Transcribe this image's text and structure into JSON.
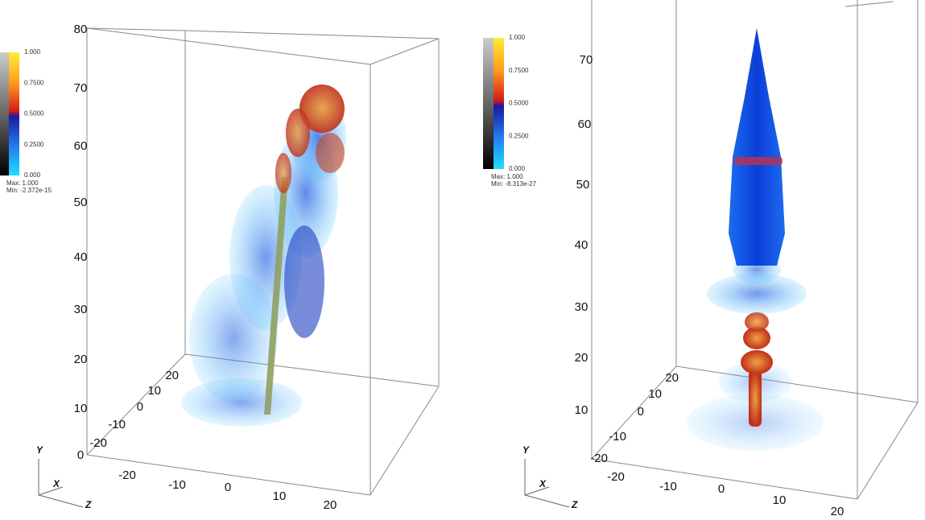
{
  "panels": [
    {
      "colorbar": {
        "labels": [
          "1.000",
          "0.7500",
          "0.5000",
          "0.2500",
          "0.000"
        ],
        "max": "Max: 1.000",
        "min": "Min: -2.372e-15"
      },
      "y_ticks": [
        "80",
        "70",
        "60",
        "50",
        "40",
        "30",
        "20",
        "10",
        "0"
      ],
      "z_ticks": [
        "20",
        "10",
        "0",
        "-10",
        "-20"
      ],
      "x_ticks": [
        "-20",
        "-10",
        "0",
        "10",
        "20"
      ],
      "axes": {
        "y": "Y",
        "x": "X",
        "z": "Z"
      }
    },
    {
      "colorbar": {
        "labels": [
          "1.000",
          "0.7500",
          "0.5000",
          "0.2500",
          "0.000"
        ],
        "max": "Max: 1.000",
        "min": "Min: -8.313e-27"
      },
      "y_ticks": [
        "70",
        "60",
        "50",
        "40",
        "30",
        "20",
        "10"
      ],
      "z_ticks": [
        "20",
        "10",
        "0",
        "-10",
        "-20"
      ],
      "x_ticks": [
        "-20",
        "-10",
        "0",
        "10",
        "20"
      ],
      "axes": {
        "y": "Y",
        "x": "X",
        "z": "Z"
      }
    }
  ]
}
